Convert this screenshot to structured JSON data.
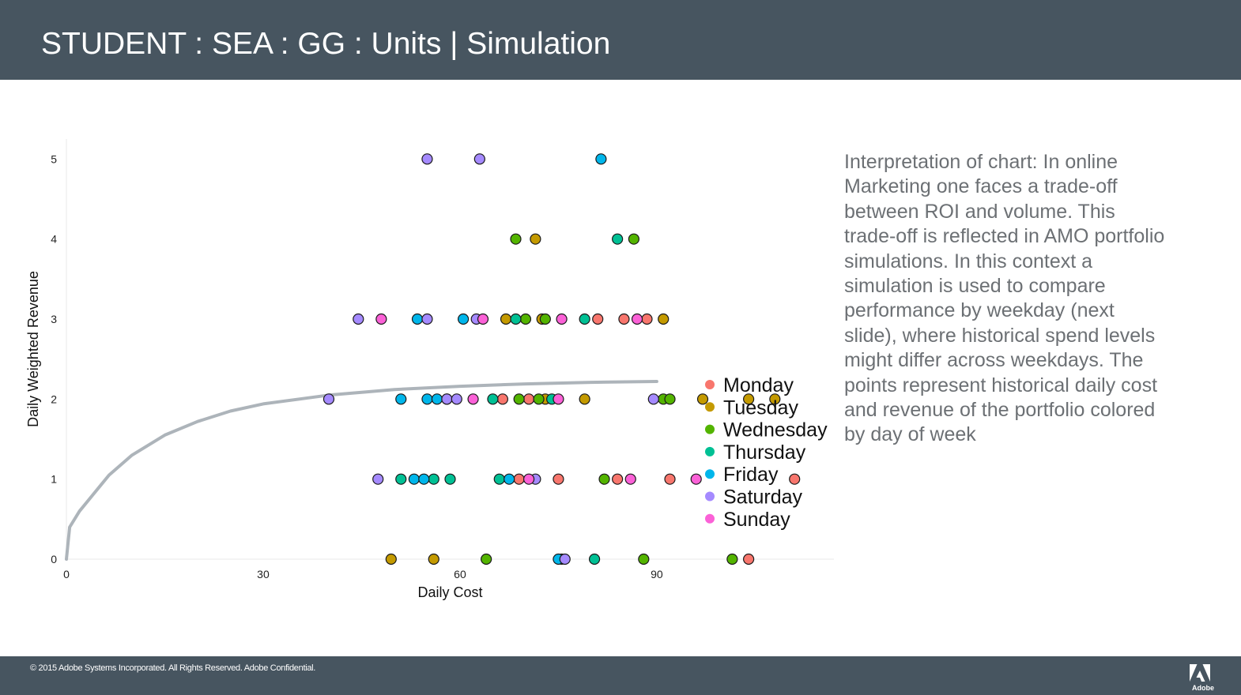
{
  "header": {
    "title": "STUDENT : SEA : GG : Units | Simulation"
  },
  "interpretation": "Interpretation of chart: In online Marketing  one faces a trade-off between ROI and volume. This trade-off is reflected in AMO portfolio simulations. In this context a simulation is used to compare performance by weekday (next slide), where historical spend levels might differ across weekdays. The points represent historical daily cost and revenue of the portfolio colored by day of week",
  "footer": {
    "copyright": "© 2015 Adobe Systems Incorporated.  All Rights Reserved.  Adobe Confidential.",
    "logo_text": "Adobe"
  },
  "colors": {
    "header_bg": "#475560",
    "curve": "#adb4ba",
    "Monday": "#f8766d",
    "Tuesday": "#c49a00",
    "Wednesday": "#53b400",
    "Thursday": "#00c094",
    "Friday": "#00b6eb",
    "Saturday": "#a58aff",
    "Sunday": "#fb61d7"
  },
  "chart_data": {
    "type": "scatter",
    "title": "",
    "xlabel": "Daily Cost",
    "ylabel": "Daily Weighted Revenue",
    "xlim": [
      0,
      117
    ],
    "ylim": [
      0,
      5.25
    ],
    "xticks": [
      0,
      30,
      60,
      90
    ],
    "yticks": [
      0,
      1,
      2,
      3,
      4,
      5
    ],
    "legend_position": "right",
    "series": [
      {
        "name": "Monday",
        "points": [
          [
            66.5,
            2
          ],
          [
            70.5,
            2
          ],
          [
            81,
            3
          ],
          [
            85,
            3
          ],
          [
            88.5,
            3
          ],
          [
            69,
            1
          ],
          [
            75,
            1
          ],
          [
            84,
            1
          ],
          [
            92,
            1
          ],
          [
            111,
            1
          ],
          [
            104,
            0
          ]
        ]
      },
      {
        "name": "Tuesday",
        "points": [
          [
            67,
            3
          ],
          [
            72.5,
            3
          ],
          [
            91,
            3
          ],
          [
            71.5,
            4
          ],
          [
            73,
            2
          ],
          [
            79,
            2
          ],
          [
            97,
            2
          ],
          [
            104,
            2
          ],
          [
            108,
            2
          ],
          [
            49.5,
            0
          ],
          [
            56,
            0
          ]
        ]
      },
      {
        "name": "Wednesday",
        "points": [
          [
            68.5,
            4
          ],
          [
            86.5,
            4
          ],
          [
            70,
            3
          ],
          [
            73,
            3
          ],
          [
            69,
            2
          ],
          [
            72,
            2
          ],
          [
            91,
            2
          ],
          [
            92,
            2
          ],
          [
            82,
            1
          ],
          [
            64,
            0
          ],
          [
            88,
            0
          ],
          [
            101.5,
            0
          ]
        ]
      },
      {
        "name": "Thursday",
        "points": [
          [
            84,
            4
          ],
          [
            68.5,
            3
          ],
          [
            79,
            3
          ],
          [
            65,
            2
          ],
          [
            74,
            2
          ],
          [
            58,
            2
          ],
          [
            51,
            1
          ],
          [
            56,
            1
          ],
          [
            58.5,
            1
          ],
          [
            66,
            1
          ],
          [
            80.5,
            0
          ],
          [
            75.5,
            0
          ]
        ]
      },
      {
        "name": "Friday",
        "points": [
          [
            81.5,
            5
          ],
          [
            53.5,
            3
          ],
          [
            60.5,
            3
          ],
          [
            51,
            2
          ],
          [
            55,
            2
          ],
          [
            56.5,
            2
          ],
          [
            53,
            1
          ],
          [
            54.5,
            1
          ],
          [
            67.5,
            1
          ],
          [
            75,
            0
          ]
        ]
      },
      {
        "name": "Saturday",
        "points": [
          [
            55,
            5
          ],
          [
            63,
            5
          ],
          [
            44.5,
            3
          ],
          [
            55,
            3
          ],
          [
            62.5,
            3
          ],
          [
            40,
            2
          ],
          [
            58,
            2
          ],
          [
            59.5,
            2
          ],
          [
            89.5,
            2
          ],
          [
            47.5,
            1
          ],
          [
            71.5,
            1
          ],
          [
            76,
            0
          ]
        ]
      },
      {
        "name": "Sunday",
        "points": [
          [
            48,
            3
          ],
          [
            63.5,
            3
          ],
          [
            75.5,
            3
          ],
          [
            87,
            3
          ],
          [
            62,
            2
          ],
          [
            75,
            2
          ],
          [
            70.5,
            1
          ],
          [
            86,
            1
          ],
          [
            96,
            1
          ]
        ]
      }
    ],
    "curve": [
      [
        0,
        0
      ],
      [
        0.5,
        0.4
      ],
      [
        2,
        0.6
      ],
      [
        4,
        0.8
      ],
      [
        6.5,
        1.05
      ],
      [
        10,
        1.3
      ],
      [
        15,
        1.55
      ],
      [
        20,
        1.72
      ],
      [
        25,
        1.85
      ],
      [
        30,
        1.94
      ],
      [
        40,
        2.05
      ],
      [
        50,
        2.12
      ],
      [
        60,
        2.16
      ],
      [
        70,
        2.19
      ],
      [
        80,
        2.21
      ],
      [
        90,
        2.22
      ]
    ]
  }
}
